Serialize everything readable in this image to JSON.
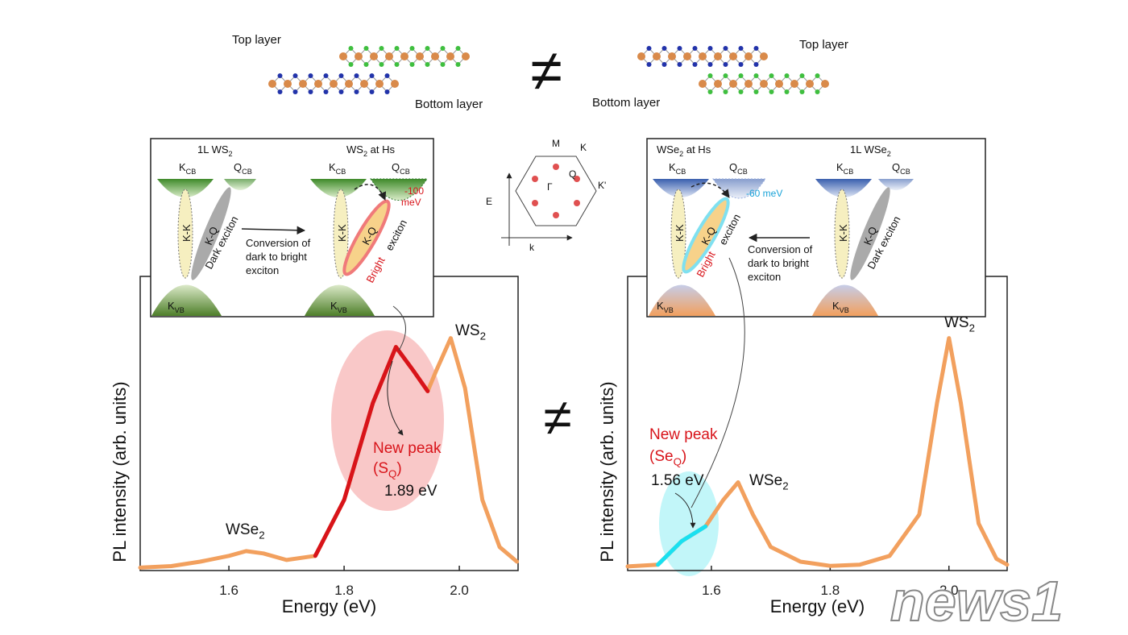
{
  "chart_data": [
    {
      "type": "line",
      "xlabel": "Energy (eV)",
      "ylabel": "PL intensity (arb. units)",
      "xlim": [
        1.446,
        2.102
      ],
      "ylim": [
        0,
        1
      ],
      "xticks": [
        1.6,
        1.8,
        {
          "value": 2,
          "label": "2.0"
        }
      ],
      "x": [
        1.446,
        1.5,
        1.55,
        1.6,
        1.63,
        1.66,
        1.7,
        1.75,
        1.8,
        1.85,
        1.89,
        1.92,
        1.945,
        1.96,
        1.985,
        2.01,
        2.04,
        2.07,
        2.1
      ],
      "series": [
        {
          "color": "#f2a05e",
          "values": [
            0.01,
            0.015,
            0.03,
            0.05,
            0.066,
            0.058,
            0.036,
            0.05,
            0.24,
            0.57,
            0.76,
            0.68,
            0.61,
            0.68,
            0.79,
            0.62,
            0.24,
            0.08,
            0.03
          ]
        },
        {
          "color": "#d8141a",
          "values": [
            null,
            null,
            null,
            null,
            null,
            null,
            null,
            0.05,
            0.24,
            0.57,
            0.76,
            0.68,
            0.61,
            null,
            null,
            null,
            null,
            null,
            null
          ]
        }
      ],
      "annotations": [
        {
          "t": "WSe",
          "sub": "2"
        },
        {
          "t": "WS",
          "sub": "2"
        },
        {
          "t": "New peak"
        },
        {
          "t": "(S",
          "sub": "Q",
          "tail": ")"
        },
        {
          "t": "1.89 eV"
        }
      ]
    },
    {
      "type": "line",
      "xlabel": "Energy (eV)",
      "ylabel": "PL intensity (arb. units)",
      "xlim": [
        1.459,
        2.098
      ],
      "ylim": [
        0,
        1
      ],
      "xticks": [
        1.6,
        1.8,
        {
          "value": 2,
          "label": "2.0"
        }
      ],
      "x": [
        1.459,
        1.51,
        1.55,
        1.59,
        1.62,
        1.645,
        1.67,
        1.7,
        1.75,
        1.8,
        1.85,
        1.9,
        1.95,
        1.98,
        2.0,
        2.02,
        2.05,
        2.08,
        2.098
      ],
      "series": [
        {
          "color": "#f2a05e",
          "values": [
            0.014,
            0.02,
            0.1,
            0.15,
            0.24,
            0.3,
            0.19,
            0.08,
            0.03,
            0.016,
            0.02,
            0.05,
            0.19,
            0.57,
            0.79,
            0.57,
            0.16,
            0.04,
            0.02
          ]
        },
        {
          "color": "#19e0f0",
          "values": [
            null,
            0.02,
            0.1,
            0.15,
            null,
            null,
            null,
            null,
            null,
            null,
            null,
            null,
            null,
            null,
            null,
            null,
            null,
            null,
            null
          ]
        }
      ],
      "annotations": [
        {
          "t": "WS",
          "sub": "2"
        },
        {
          "t": "WSe",
          "sub": "2"
        },
        {
          "t": "New peak"
        },
        {
          "t": "(Se",
          "sub": "Q",
          "tail": ")"
        },
        {
          "t": "1.56 eV"
        }
      ]
    }
  ],
  "diagram": {
    "top": {
      "left_top": "Top layer",
      "left_bottom": "Bottom layer",
      "right_top": "Top layer",
      "right_bottom": "Bottom layer",
      "neq": "≠"
    },
    "neq_middle": "≠",
    "bz": {
      "M": "M",
      "K": "K",
      "Q": "Q",
      "G": "Γ",
      "K2": "K'",
      "E": "E",
      "k": "k"
    },
    "left_inset": {
      "title1": {
        "t": "1L WS",
        "sub": "2"
      },
      "title2": {
        "t": "WS",
        "sub": "2",
        "tail": " at Hs"
      },
      "kcb1": {
        "t": "K",
        "sub": "CB"
      },
      "qcb1": {
        "t": "Q",
        "sub": "CB"
      },
      "kcb2": {
        "t": "K",
        "sub": "CB"
      },
      "qcb2": {
        "t": "Q",
        "sub": "CB"
      },
      "kvb1": {
        "t": "K",
        "sub": "VB"
      },
      "kvb2": {
        "t": "K",
        "sub": "VB"
      },
      "kk1": "K-K",
      "kq1": "K-Q",
      "dark": "Dark exciton",
      "kk2": "K-K",
      "kq2": "K-Q",
      "bright": "Bright",
      "exciton": "exciton",
      "conv1": "Conversion of",
      "conv2": "dark  to bright",
      "conv3": "exciton",
      "shift1": "-100",
      "shift2": "meV"
    },
    "right_inset": {
      "title1": {
        "t": "WSe",
        "sub": "2",
        "tail": " at Hs"
      },
      "title2": {
        "t": "1L WSe",
        "sub": "2"
      },
      "kcb1": {
        "t": "K",
        "sub": "CB"
      },
      "qcb1": {
        "t": "Q",
        "sub": "CB"
      },
      "kcb2": {
        "t": "K",
        "sub": "CB"
      },
      "qcb2": {
        "t": "Q",
        "sub": "CB"
      },
      "kvb1": {
        "t": "K",
        "sub": "VB"
      },
      "kvb2": {
        "t": "K",
        "sub": "VB"
      },
      "kk1": "K-K",
      "kq1": "K-Q",
      "bright": "Bright",
      "exciton": "exciton",
      "kk2": "K-K",
      "kq2": "K-Q",
      "dark": "Dark exciton",
      "conv1": "Conversion of",
      "conv2": "dark  to bright",
      "conv3": "exciton",
      "shift": "-60 meV"
    },
    "logo": "news1"
  }
}
